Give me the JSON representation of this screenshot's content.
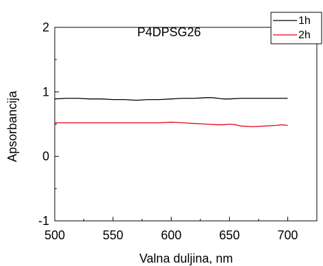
{
  "chart_data": {
    "type": "line",
    "title": "P4DPSG26",
    "xlabel": "Valna duljina, nm",
    "ylabel": "Apsorbancija",
    "xlim": [
      500,
      725
    ],
    "ylim": [
      -1,
      2
    ],
    "xticks": [
      "500",
      "550",
      "600",
      "650",
      "700"
    ],
    "yticks": [
      "-1",
      "0",
      "1",
      "2"
    ],
    "legend_position": "top-right",
    "series": [
      {
        "name": "1h",
        "color": "#000000",
        "x": [
          500,
          510,
          520,
          530,
          540,
          550,
          560,
          570,
          580,
          590,
          600,
          610,
          620,
          630,
          635,
          640,
          645,
          650,
          660,
          670,
          680,
          690,
          700
        ],
        "y": [
          0.89,
          0.9,
          0.9,
          0.89,
          0.89,
          0.88,
          0.88,
          0.87,
          0.88,
          0.88,
          0.89,
          0.9,
          0.9,
          0.91,
          0.91,
          0.9,
          0.89,
          0.89,
          0.9,
          0.9,
          0.9,
          0.9,
          0.9
        ]
      },
      {
        "name": "2h",
        "color": "#e8001a",
        "x": [
          500,
          510,
          520,
          530,
          540,
          550,
          560,
          570,
          580,
          590,
          600,
          610,
          620,
          630,
          640,
          645,
          650,
          655,
          660,
          670,
          680,
          690,
          695,
          700
        ],
        "y": [
          0.52,
          0.52,
          0.52,
          0.52,
          0.52,
          0.52,
          0.52,
          0.52,
          0.52,
          0.52,
          0.53,
          0.52,
          0.51,
          0.5,
          0.49,
          0.49,
          0.5,
          0.49,
          0.47,
          0.46,
          0.47,
          0.48,
          0.49,
          0.48
        ]
      }
    ]
  }
}
